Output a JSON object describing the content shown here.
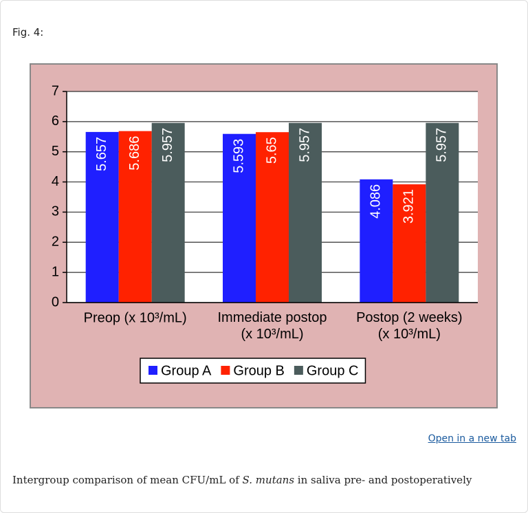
{
  "figure_label": "Fig. 4:",
  "link": "Open in a new tab",
  "caption": [
    "Intergroup comparison of mean CFU/mL of ",
    "S. mutans",
    " in saliva pre- and postoperatively"
  ],
  "chart_data": {
    "type": "bar",
    "categories": [
      "Preop (x 10³/mL)",
      "Immediate postop (x 10³/mL)",
      "Postop (2 weeks) (x 10³/mL)"
    ],
    "series": [
      {
        "name": "Group A",
        "color": "#1f1fff",
        "values": [
          5.657,
          5.593,
          4.086
        ]
      },
      {
        "name": "Group B",
        "color": "#ff2200",
        "values": [
          5.686,
          5.65,
          3.921
        ]
      },
      {
        "name": "Group C",
        "color": "#4b5c5c",
        "values": [
          5.957,
          5.957,
          5.957
        ]
      }
    ],
    "ylim": [
      0,
      7
    ],
    "yticks": [
      0,
      1,
      2,
      3,
      4,
      5,
      6,
      7
    ],
    "grid": true,
    "legend": "bottom"
  }
}
